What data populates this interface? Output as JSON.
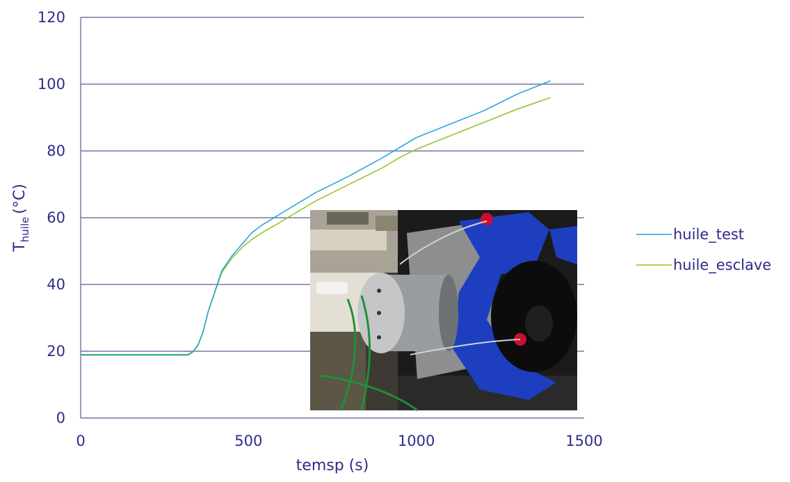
{
  "chart_data": {
    "type": "line",
    "title": "",
    "xlabel": "temsp (s)",
    "ylabel_main": "T",
    "ylabel_sub": "huile",
    "ylabel_unit": "(°C)",
    "xlim": [
      0,
      1500
    ],
    "ylim": [
      0,
      120
    ],
    "x_ticks": [
      "0",
      "500",
      "1000",
      "1500"
    ],
    "y_ticks": [
      "0",
      "20",
      "40",
      "60",
      "80",
      "100",
      "120"
    ],
    "grid": "horizontal",
    "legend_position": "right",
    "colors": {
      "text": "#2e2b8a",
      "grid": "#5b5a8e",
      "huile_test": "#1aa3dc",
      "huile_esclave": "#8dc21f"
    },
    "series": [
      {
        "name": "huile_test",
        "x": [
          0,
          320,
          335,
          350,
          365,
          380,
          400,
          420,
          450,
          480,
          510,
          540,
          580,
          650,
          700,
          800,
          900,
          950,
          1000,
          1100,
          1200,
          1300,
          1400
        ],
        "y": [
          19,
          19,
          20,
          22,
          26,
          32,
          38,
          44,
          48.5,
          52,
          55.5,
          57.8,
          60.2,
          64.5,
          67.5,
          72.5,
          78,
          81,
          84,
          88,
          92,
          97,
          101
        ]
      },
      {
        "name": "huile_esclave",
        "x": [
          0,
          320,
          335,
          350,
          365,
          380,
          400,
          420,
          450,
          480,
          510,
          540,
          580,
          650,
          700,
          800,
          900,
          950,
          1000,
          1100,
          1200,
          1300,
          1400
        ],
        "y": [
          18.8,
          18.8,
          19.8,
          21.8,
          25.8,
          31.8,
          37.8,
          43.5,
          47.8,
          51,
          53.5,
          55.5,
          57.8,
          62,
          65,
          70,
          75,
          78,
          80.5,
          84.5,
          88.5,
          92.5,
          96
        ]
      }
    ]
  }
}
